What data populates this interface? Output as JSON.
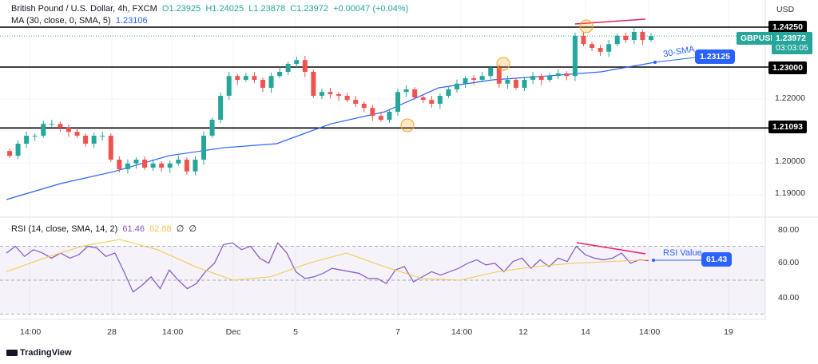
{
  "header": {
    "symbol_title": "British Pound / U.S. Dollar, 4h, FXCM",
    "open": "O1.23925",
    "high": "H1.24025",
    "low": "L1.23878",
    "close": "C1.23972",
    "change": "+0.00047 (+0.04%)",
    "ma_label": "MA (30, close, 0, SMA, 5)",
    "ma_value": "1.23106"
  },
  "rsi_header": {
    "label": "RSI (14, close, SMA, 14, 2)",
    "rsi_value": "61.46",
    "rsi_ma_value": "62.88",
    "extra1": "∅",
    "extra2": "∅"
  },
  "price_axis": {
    "currency": "USD",
    "ticks": [
      "1.22000",
      "1.20000",
      "1.19000"
    ],
    "levels": [
      "1.24250",
      "1.23000",
      "1.21093"
    ],
    "current": {
      "symbol": "GBPUSD",
      "price": "1.23972",
      "countdown": "03:03:05"
    }
  },
  "rsi_axis": {
    "ticks": [
      "80.00",
      "60.00",
      "40.00"
    ]
  },
  "annotations": {
    "sma_label": "30-SMA",
    "sma_value": "1.23125",
    "rsi_label": "RSI Value",
    "rsi_value": "61.43"
  },
  "time_axis": [
    "14:00",
    "28",
    "14:00",
    "Dec",
    "5",
    "7",
    "14:00",
    "12",
    "14",
    "14:00",
    "19"
  ],
  "branding": "TradingView",
  "colors": {
    "up": "#26a69a",
    "down": "#ef5350",
    "ma": "#2962ff",
    "rsi": "#7e57c2",
    "rsi_ma": "#f2c94c",
    "annotation": "#e91e63",
    "circle": "#f5a623"
  },
  "chart_data": [
    {
      "type": "candlestick",
      "title": "British Pound / U.S. Dollar, 4h, FXCM",
      "ylim": [
        1.186,
        1.246
      ],
      "closes": [
        1.2022,
        1.206,
        1.2085,
        1.2085,
        1.2122,
        1.2122,
        1.211,
        1.2097,
        1.2085,
        1.206,
        1.2085,
        1.2085,
        1.201,
        1.198,
        1.1998,
        1.201,
        1.1985,
        1.1998,
        1.1985,
        1.1998,
        1.201,
        1.1973,
        1.201,
        1.2085,
        1.2135,
        1.221,
        1.2272,
        1.226,
        1.2272,
        1.226,
        1.2235,
        1.2272,
        1.2285,
        1.231,
        1.2322,
        1.2285,
        1.221,
        1.2222,
        1.2215,
        1.221,
        1.2197,
        1.2185,
        1.2172,
        1.2147,
        1.2135,
        1.216,
        1.2222,
        1.223,
        1.2205,
        1.2197,
        1.2185,
        1.221,
        1.223,
        1.2248,
        1.2265,
        1.226,
        1.2272,
        1.2298,
        1.2248,
        1.226,
        1.2235,
        1.226,
        1.2272,
        1.226,
        1.2272,
        1.228,
        1.2272,
        1.2398,
        1.2372,
        1.236,
        1.2348,
        1.2372,
        1.2398,
        1.2385,
        1.241,
        1.2385,
        1.2397
      ],
      "ma30": [
        1.1885,
        1.1935,
        1.1973,
        1.2022,
        1.2047,
        1.206,
        1.2122,
        1.216,
        1.2235,
        1.226,
        1.2272,
        1.2285,
        1.2315
      ],
      "levels": [
        1.2425,
        1.23,
        1.21093
      ]
    },
    {
      "type": "line",
      "title": "RSI (14, close, SMA, 14, 2)",
      "ylim": [
        25,
        85
      ],
      "bands": [
        30,
        50,
        70
      ],
      "rsi": [
        66,
        70,
        64,
        68,
        66,
        63,
        66,
        63,
        65,
        70,
        69,
        64,
        66,
        55,
        43,
        47,
        52,
        45,
        56,
        50,
        45,
        48,
        55,
        60,
        71,
        72,
        68,
        70,
        63,
        60,
        72,
        66,
        55,
        51,
        52,
        54,
        57,
        56,
        55,
        54,
        51,
        51,
        48,
        56,
        58,
        49,
        52,
        55,
        53,
        55,
        57,
        60,
        62,
        59,
        60,
        55,
        61,
        63,
        57,
        62,
        58,
        63,
        61,
        70,
        65,
        63,
        62,
        63,
        66,
        60,
        62,
        61.43
      ],
      "rsi_ma": [
        55,
        63,
        70,
        74,
        68,
        58,
        50,
        52,
        60,
        66,
        58,
        51,
        50,
        55,
        58,
        60,
        61,
        62
      ]
    }
  ]
}
